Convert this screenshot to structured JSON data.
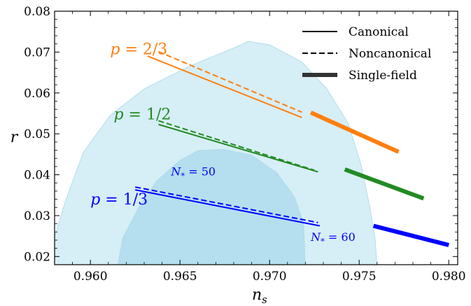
{
  "chart_data": {
    "type": "line",
    "xlabel": "n_s",
    "ylabel": "r",
    "xlim": [
      0.958,
      0.9805
    ],
    "ylim": [
      0.018,
      0.08
    ],
    "x_ticks": [
      "0.960",
      "0.965",
      "0.970",
      "0.975",
      "0.980"
    ],
    "x_tick_values": [
      0.96,
      0.965,
      0.97,
      0.975,
      0.98
    ],
    "y_ticks": [
      "0.02",
      "0.03",
      "0.04",
      "0.05",
      "0.06",
      "0.07",
      "0.08"
    ],
    "y_tick_values": [
      0.02,
      0.03,
      0.04,
      0.05,
      0.06,
      0.07,
      0.08
    ],
    "grid": false,
    "legend_position": "top-right",
    "legend": [
      {
        "label": "Canonical",
        "style": "solid"
      },
      {
        "label": "Noncanonical",
        "style": "dashed"
      },
      {
        "label": "Single-field",
        "style": "thick"
      }
    ],
    "contours": [
      {
        "level": "outer",
        "color": "#d6eef6",
        "points": [
          [
            0.9575,
            0.017
          ],
          [
            0.9578,
            0.022
          ],
          [
            0.9586,
            0.0335
          ],
          [
            0.9596,
            0.0455
          ],
          [
            0.9611,
            0.0545
          ],
          [
            0.963,
            0.061
          ],
          [
            0.9655,
            0.0665
          ],
          [
            0.968,
            0.071
          ],
          [
            0.9688,
            0.0726
          ],
          [
            0.97,
            0.0718
          ],
          [
            0.9718,
            0.0676
          ],
          [
            0.9732,
            0.061
          ],
          [
            0.9744,
            0.0525
          ],
          [
            0.9751,
            0.0425
          ],
          [
            0.9756,
            0.032
          ],
          [
            0.9759,
            0.024
          ],
          [
            0.976,
            0.017
          ]
        ]
      },
      {
        "level": "inner",
        "color": "#b5dfee",
        "points": [
          [
            0.9615,
            0.017
          ],
          [
            0.9618,
            0.0245
          ],
          [
            0.9627,
            0.032
          ],
          [
            0.9637,
            0.0385
          ],
          [
            0.965,
            0.0435
          ],
          [
            0.966,
            0.0459
          ],
          [
            0.9674,
            0.0462
          ],
          [
            0.969,
            0.0448
          ],
          [
            0.9704,
            0.0405
          ],
          [
            0.9714,
            0.0345
          ],
          [
            0.9719,
            0.028
          ],
          [
            0.972,
            0.017
          ]
        ]
      }
    ],
    "series": [
      {
        "name": "p=2/3",
        "model": "Canonical",
        "color": "#ff7f0e",
        "style": "solid",
        "x": [
          0.9632,
          0.9718
        ],
        "y": [
          0.069,
          0.054
        ]
      },
      {
        "name": "p=2/3",
        "model": "Noncanonical",
        "color": "#ff7f0e",
        "style": "dashed",
        "x": [
          0.9638,
          0.9718
        ],
        "y": [
          0.0701,
          0.0553
        ]
      },
      {
        "name": "p=2/3",
        "model": "Single-field",
        "color": "#ff7f0e",
        "style": "thick",
        "x": [
          0.9723,
          0.9772
        ],
        "y": [
          0.0552,
          0.0456
        ]
      },
      {
        "name": "p=1/2",
        "model": "Canonical",
        "color": "#228b22",
        "style": "solid",
        "x": [
          0.9638,
          0.9727
        ],
        "y": [
          0.0523,
          0.0407
        ]
      },
      {
        "name": "p=1/2",
        "model": "Noncanonical",
        "color": "#228b22",
        "style": "dashed",
        "x": [
          0.9638,
          0.9725
        ],
        "y": [
          0.0532,
          0.0411
        ]
      },
      {
        "name": "p=1/2",
        "model": "Single-field",
        "color": "#228b22",
        "style": "thick",
        "x": [
          0.9742,
          0.9786
        ],
        "y": [
          0.0413,
          0.0342
        ]
      },
      {
        "name": "p=1/3",
        "model": "Canonical",
        "color": "#0000ff",
        "style": "solid",
        "x": [
          0.9625,
          0.9728
        ],
        "y": [
          0.0363,
          0.0275
        ]
      },
      {
        "name": "p=1/3",
        "model": "Noncanonical",
        "color": "#0000ff",
        "style": "dashed",
        "x": [
          0.9625,
          0.9727
        ],
        "y": [
          0.037,
          0.0283
        ]
      },
      {
        "name": "p=1/3",
        "model": "Single-field",
        "color": "#0000ff",
        "style": "thick",
        "x": [
          0.9758,
          0.98
        ],
        "y": [
          0.0275,
          0.0228
        ]
      }
    ],
    "annotations": [
      {
        "text": "p = 2/3",
        "x": 0.9611,
        "y": 0.0695,
        "color": "#ff7f0e",
        "size": 22
      },
      {
        "text": "p = 1/2",
        "x": 0.9613,
        "y": 0.0535,
        "color": "#228b22",
        "size": 22
      },
      {
        "text": "p = 1/3",
        "x": 0.96,
        "y": 0.0327,
        "color": "#0000ff",
        "size": 22
      },
      {
        "text": "N* = 50",
        "x": 0.9645,
        "y": 0.0398,
        "color": "#0000ff",
        "size": 16
      },
      {
        "text": "N* = 60",
        "x": 0.9723,
        "y": 0.0238,
        "color": "#0000ff",
        "size": 16
      }
    ]
  }
}
